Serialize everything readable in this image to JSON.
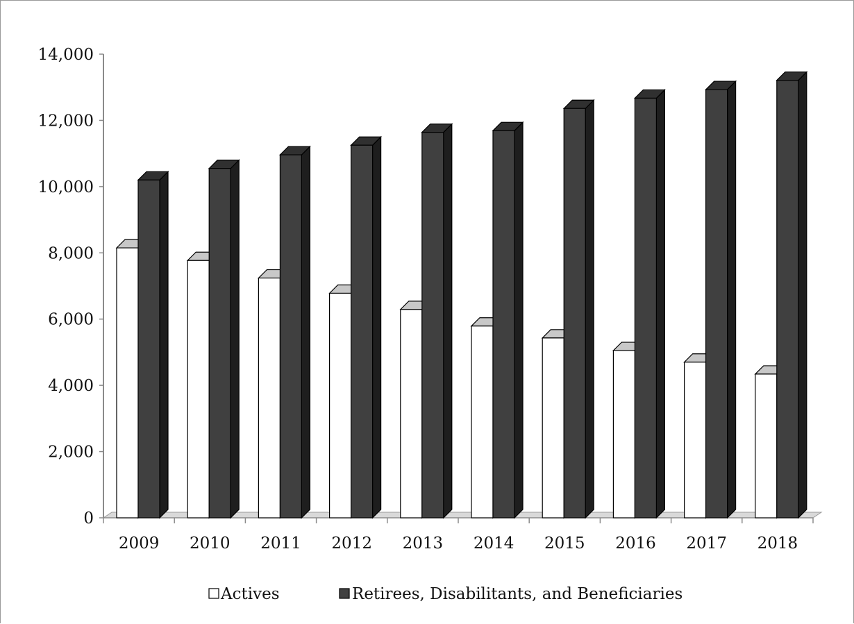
{
  "chart_data": {
    "type": "bar",
    "title": "",
    "xlabel": "",
    "ylabel": "",
    "categories": [
      "2009",
      "2010",
      "2011",
      "2012",
      "2013",
      "2014",
      "2015",
      "2016",
      "2017",
      "2018"
    ],
    "series": [
      {
        "name": "Actives",
        "color": "#ffffff",
        "values": [
          8150,
          7770,
          7240,
          6780,
          6290,
          5790,
          5430,
          5050,
          4700,
          4340
        ]
      },
      {
        "name": "Retirees, Disabilitants, and Beneficiaries",
        "color": "#404040",
        "values": [
          10200,
          10550,
          10960,
          11250,
          11640,
          11690,
          12360,
          12670,
          12930,
          13210
        ]
      }
    ],
    "ylim": [
      0,
      14000
    ],
    "yticks": [
      "0",
      "2,000",
      "4,000",
      "6,000",
      "8,000",
      "10,000",
      "12,000",
      "14,000"
    ],
    "grid": false,
    "legend": "bottom",
    "style": "3d-columns"
  }
}
